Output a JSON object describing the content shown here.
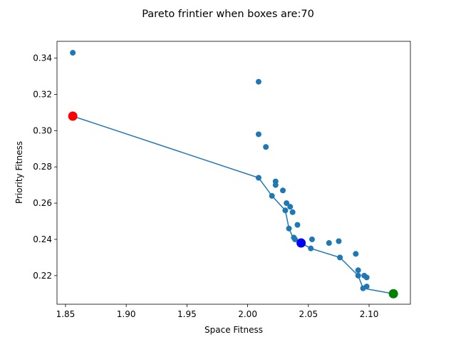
{
  "chart_data": {
    "type": "scatter",
    "title": "Pareto frintier when boxes are:70",
    "xlabel": "Space Fitness",
    "ylabel": "Priority Fitness",
    "xlim": [
      1.843,
      2.134
    ],
    "ylim": [
      0.2042,
      0.3493
    ],
    "x_ticks": [
      1.85,
      1.9,
      1.95,
      2.0,
      2.05,
      2.1
    ],
    "x_tick_labels": [
      "1.85",
      "1.90",
      "1.95",
      "2.00",
      "2.05",
      "2.10"
    ],
    "y_ticks": [
      0.22,
      0.24,
      0.26,
      0.28,
      0.3,
      0.32,
      0.34
    ],
    "y_tick_labels": [
      "0.22",
      "0.24",
      "0.26",
      "0.28",
      "0.30",
      "0.32",
      "0.34"
    ],
    "grid": false,
    "colors": {
      "points": "#1f77b4",
      "frontier_line": "#1f77b4",
      "highlight_start": "#ff0000",
      "highlight_middle": "#0000ff",
      "highlight_end": "#008000"
    },
    "series": [
      {
        "kind": "scatter",
        "x": [
          1.856,
          2.009,
          2.009,
          2.015,
          2.009,
          2.023,
          2.023,
          2.029,
          2.02,
          2.032,
          2.035,
          2.037,
          2.031,
          2.041,
          2.034,
          2.053,
          2.038,
          2.039,
          2.052,
          2.067,
          2.075,
          2.076,
          2.089,
          2.091,
          2.091,
          2.096,
          2.098,
          2.098,
          2.095
        ],
        "y": [
          0.343,
          0.327,
          0.298,
          0.291,
          0.274,
          0.272,
          0.27,
          0.267,
          0.264,
          0.26,
          0.258,
          0.255,
          0.256,
          0.248,
          0.246,
          0.24,
          0.241,
          0.24,
          0.235,
          0.238,
          0.239,
          0.23,
          0.232,
          0.223,
          0.22,
          0.22,
          0.219,
          0.214,
          0.213
        ]
      },
      {
        "kind": "line",
        "x": [
          1.856,
          2.009,
          2.02,
          2.031,
          2.034,
          2.038,
          2.044,
          2.052,
          2.076,
          2.091,
          2.095,
          2.12
        ],
        "y": [
          0.308,
          0.274,
          0.264,
          0.256,
          0.246,
          0.24,
          0.238,
          0.235,
          0.23,
          0.22,
          0.213,
          0.21
        ]
      },
      {
        "kind": "highlight",
        "x": [
          1.856,
          2.044,
          2.12
        ],
        "y": [
          0.308,
          0.238,
          0.21
        ],
        "colors": [
          "#ff0000",
          "#0000ff",
          "#008000"
        ]
      }
    ]
  }
}
